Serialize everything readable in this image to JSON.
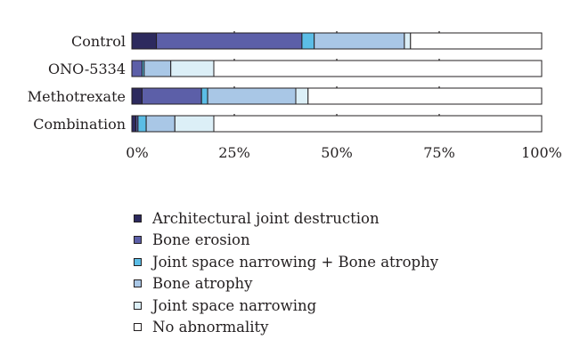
{
  "chart_data": {
    "type": "bar",
    "orientation": "horizontal",
    "stacked": true,
    "categories": [
      "Control",
      "ONO-5334",
      "Methotrexate",
      "Combination"
    ],
    "series": [
      {
        "name": "Architectural joint destruction",
        "color": "#2d2a5e",
        "values": [
          6,
          0,
          2.5,
          1
        ]
      },
      {
        "name": "Bone erosion",
        "color": "#5c5fa8",
        "values": [
          35.5,
          2.5,
          14.5,
          0.5
        ]
      },
      {
        "name": "Joint space narrowing + Bone atrophy",
        "color": "#5bbde6",
        "values": [
          3,
          0.5,
          1.5,
          2
        ]
      },
      {
        "name": "Bone atrophy",
        "color": "#a9c7e6",
        "values": [
          22,
          6.5,
          21.5,
          7
        ]
      },
      {
        "name": "Joint space narrowing",
        "color": "#dceff7",
        "values": [
          1.5,
          10.5,
          3,
          9.5
        ]
      },
      {
        "name": "No abnormality",
        "color": "#ffffff",
        "values": [
          32,
          80,
          57,
          80
        ]
      }
    ],
    "xlim": [
      0,
      100
    ],
    "xticks": [
      "0%",
      "25%",
      "50%",
      "75%",
      "100%"
    ],
    "legend_position": "bottom"
  }
}
